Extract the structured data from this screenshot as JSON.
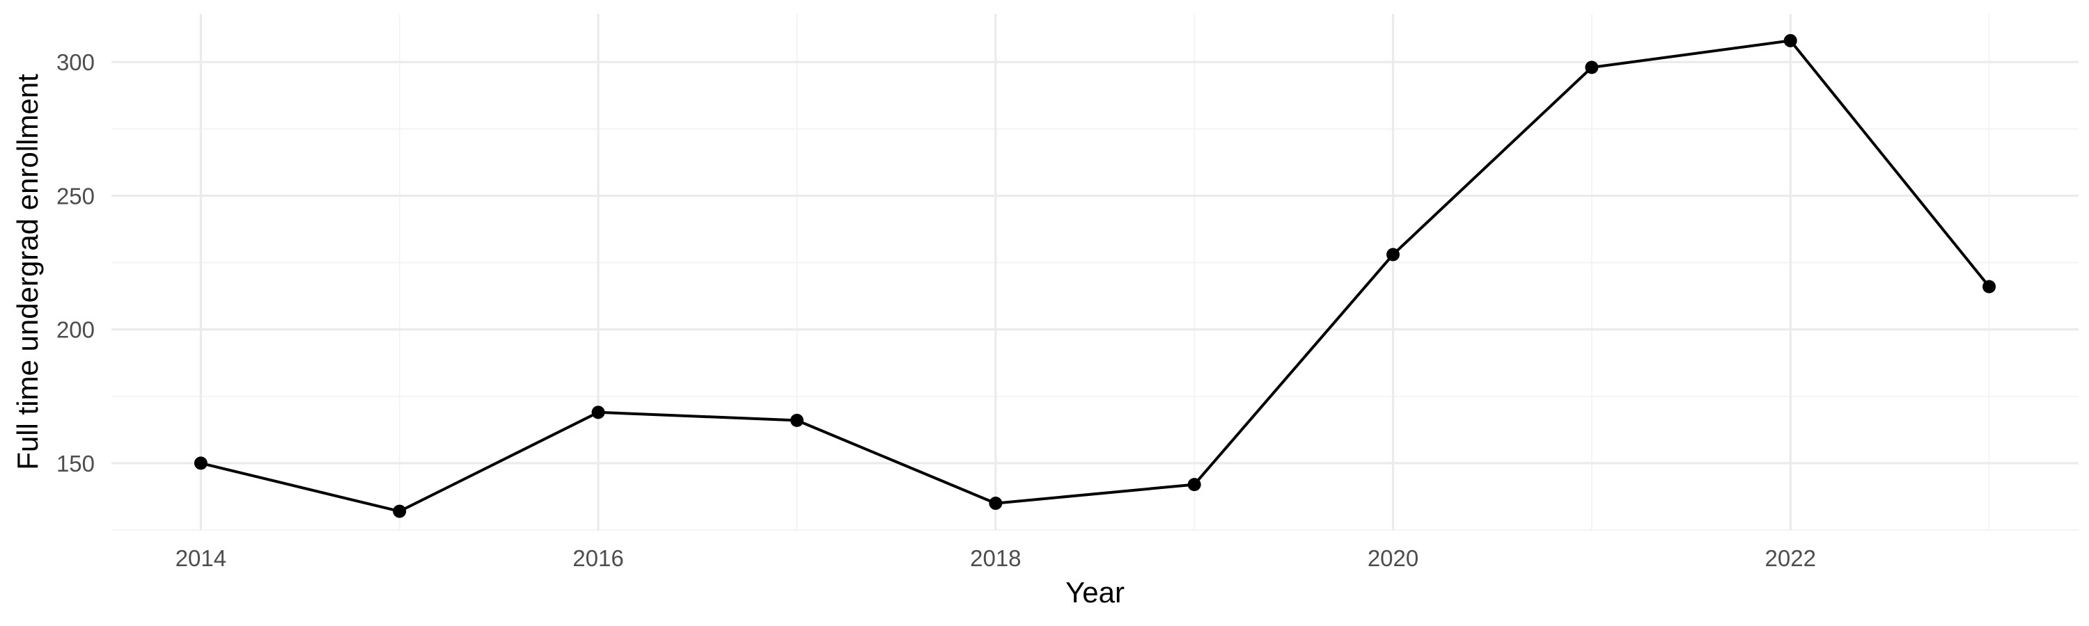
{
  "chart_data": {
    "type": "line",
    "xlabel": "Year",
    "ylabel": "Full time undergrad enrollment",
    "x": [
      2014,
      2015,
      2016,
      2017,
      2018,
      2019,
      2020,
      2021,
      2022,
      2023
    ],
    "series": [
      {
        "values": [
          150,
          132,
          169,
          166,
          135,
          142,
          228,
          298,
          308,
          216
        ]
      }
    ],
    "xlim": [
      2013.55,
      2023.45
    ],
    "ylim": [
      125,
      318
    ],
    "x_ticks": [
      2014,
      2016,
      2018,
      2020,
      2022
    ],
    "x_tick_labels": [
      "2014",
      "2016",
      "2018",
      "2020",
      "2022"
    ],
    "y_ticks": [
      150,
      200,
      250,
      300
    ],
    "y_tick_labels": [
      "150",
      "200",
      "250",
      "300"
    ],
    "grid": true,
    "colors": {
      "line": "#000000",
      "point": "#000000",
      "grid": "#ebebeb",
      "tick_text": "#4d4d4d"
    }
  }
}
